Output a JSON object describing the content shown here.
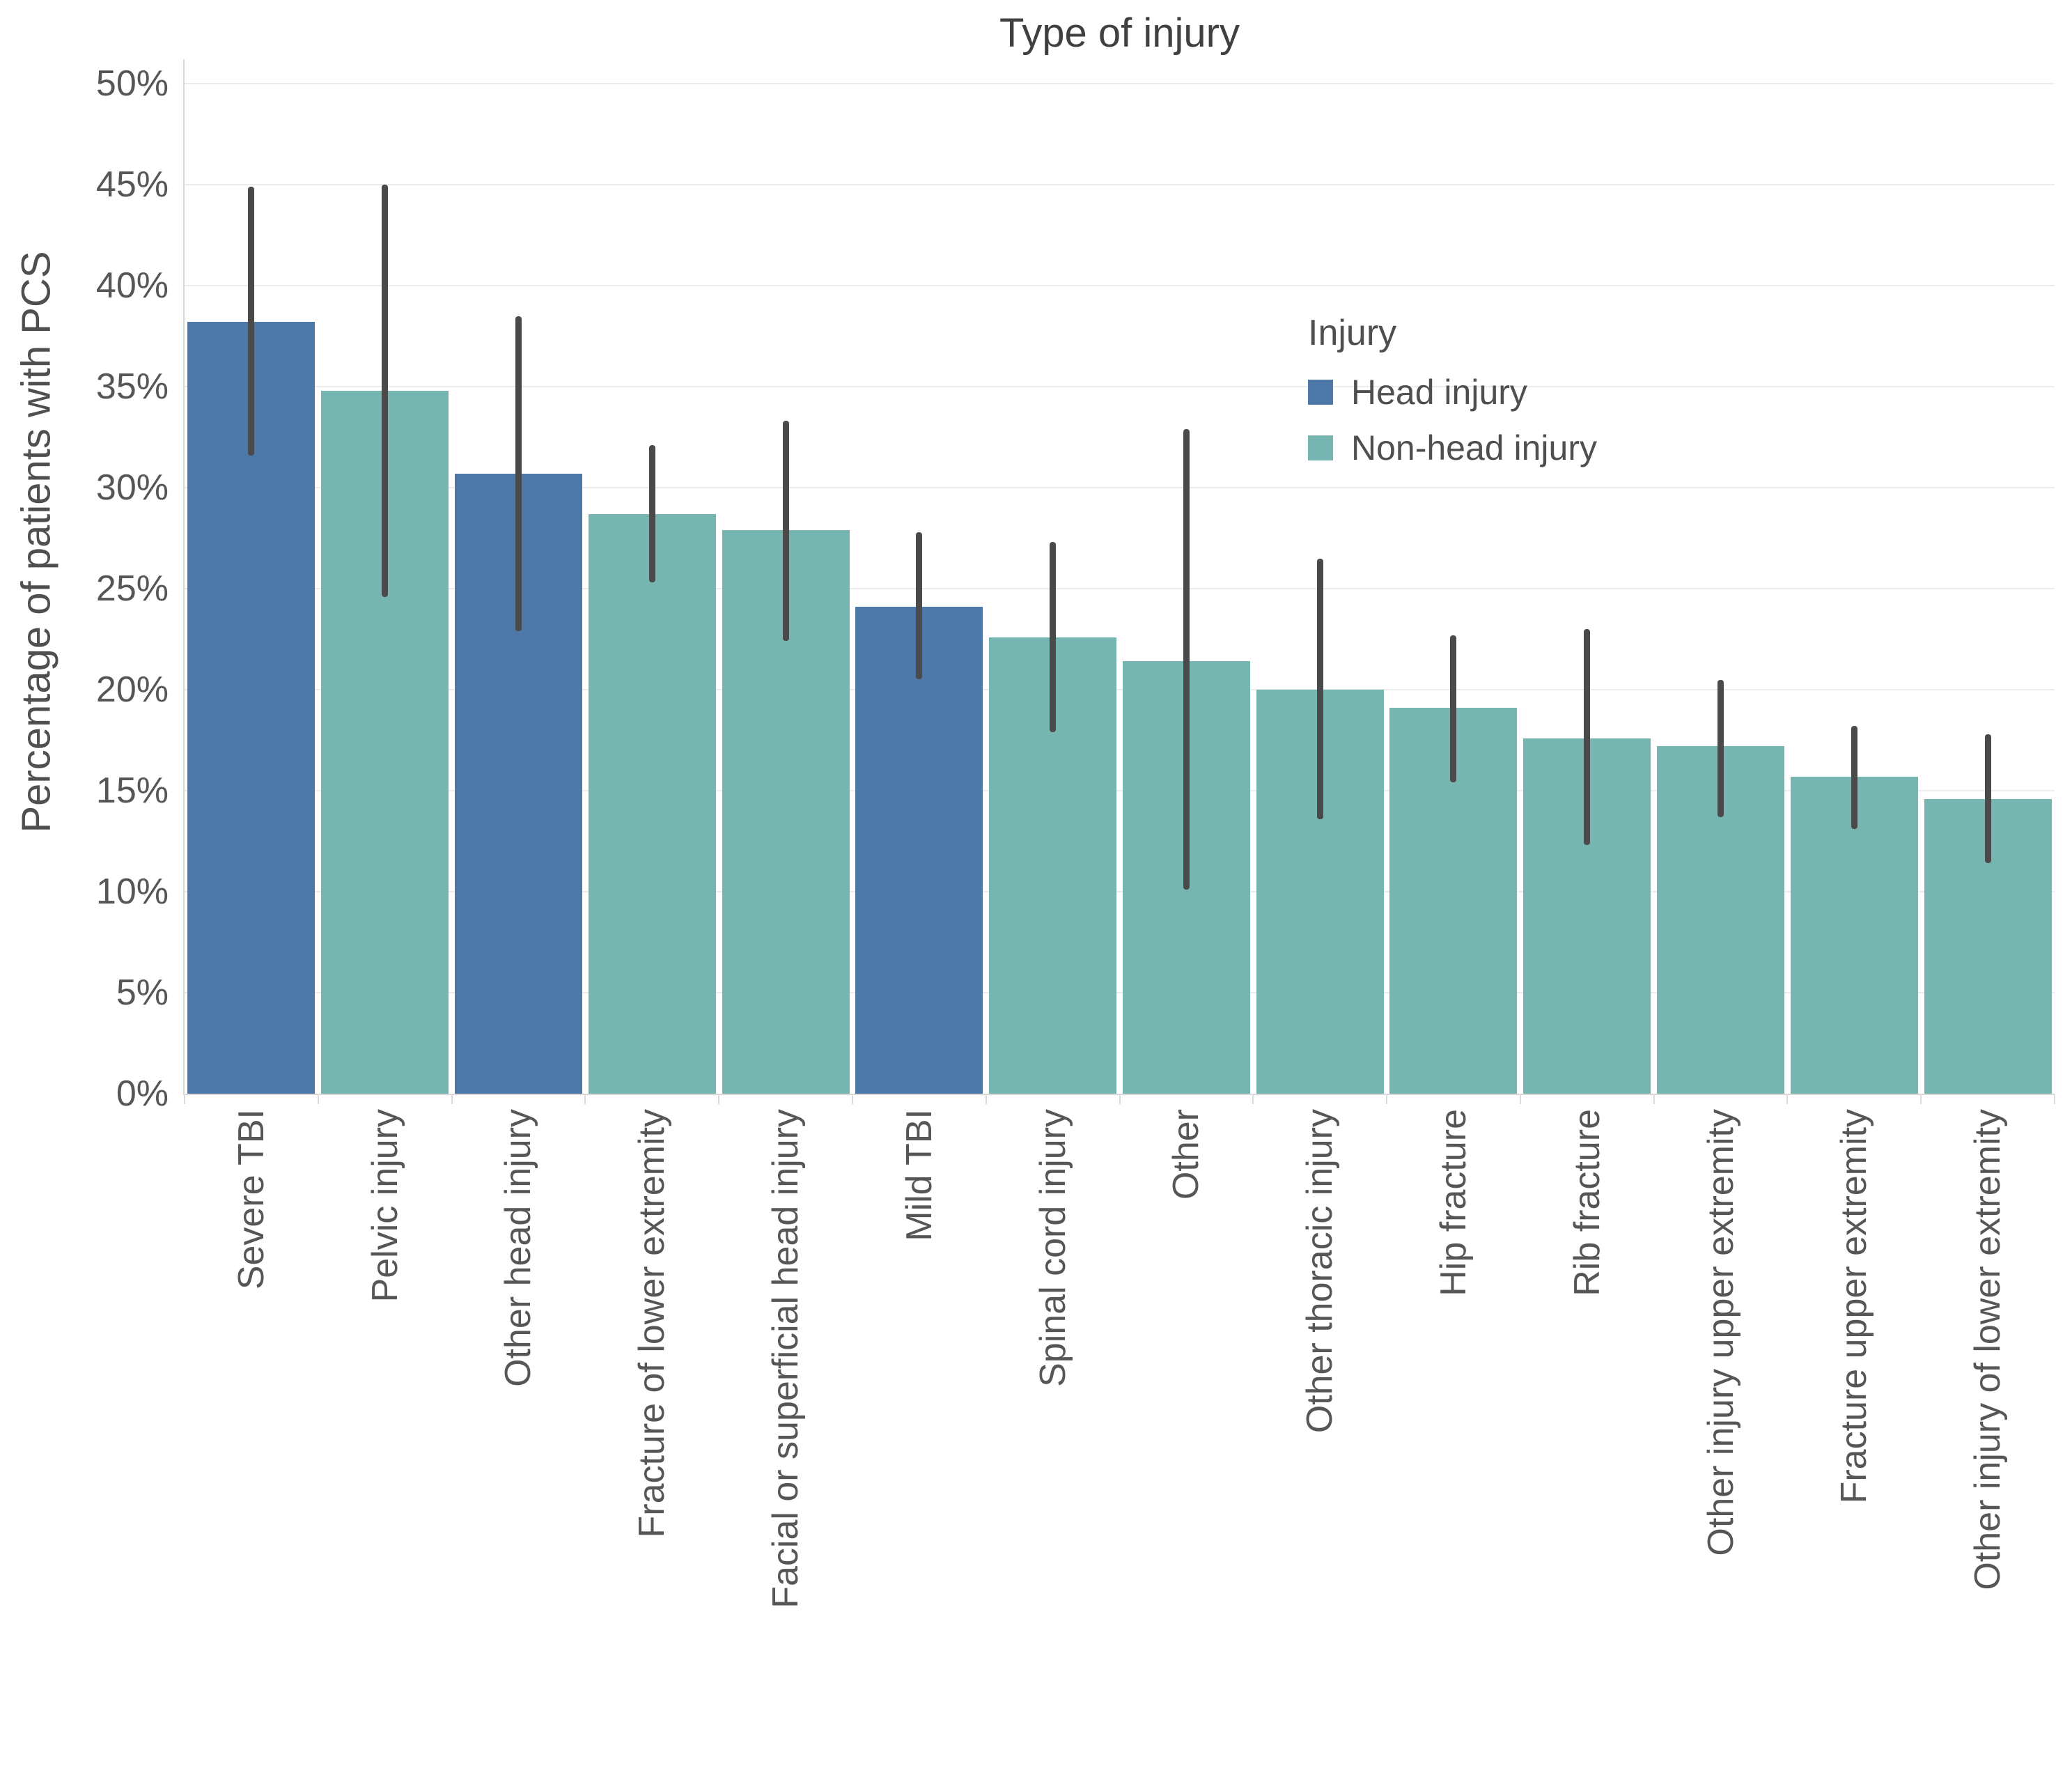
{
  "title": "Type of injury",
  "y_axis": {
    "label": "Percentage of patients with PCS",
    "ticks": [
      {
        "value": 0,
        "label": "0%"
      },
      {
        "value": 5,
        "label": "5%"
      },
      {
        "value": 10,
        "label": "10%"
      },
      {
        "value": 15,
        "label": "15%"
      },
      {
        "value": 20,
        "label": "20%"
      },
      {
        "value": 25,
        "label": "25%"
      },
      {
        "value": 30,
        "label": "30%"
      },
      {
        "value": 35,
        "label": "35%"
      },
      {
        "value": 40,
        "label": "40%"
      },
      {
        "value": 45,
        "label": "45%"
      },
      {
        "value": 50,
        "label": "50%"
      }
    ]
  },
  "legend": {
    "title": "Injury",
    "items": [
      {
        "label": "Head injury",
        "color": "#4e78a8"
      },
      {
        "label": "Non-head injury",
        "color": "#77b5b0"
      }
    ]
  },
  "colors": {
    "head_injury": "#4e78a8",
    "non_head_injury": "#77b5b0",
    "error_bar": "#4a4a4a",
    "gridline": "#ececec",
    "axis_line": "#d8d8d8",
    "tick_text": "#565656",
    "title_text": "#404040"
  },
  "chart_data": {
    "type": "bar",
    "title": "Type of injury",
    "xlabel": "",
    "ylabel": "Percentage of patients with PCS",
    "ylim": [
      0,
      51
    ],
    "ytick_step": 5,
    "grid": "horizontal",
    "legend_title": "Injury",
    "legend_position": "upper-right-inside",
    "error_bars": true,
    "series": [
      {
        "name": "Head injury",
        "color": "#4e78a8"
      },
      {
        "name": "Non-head injury",
        "color": "#77b5b0"
      }
    ],
    "categories": [
      {
        "label": "Severe TBI",
        "series": "Head injury",
        "value": 38.2,
        "ci_low": 31.6,
        "ci_high": 44.9
      },
      {
        "label": "Pelvic injury",
        "series": "Non-head injury",
        "value": 34.8,
        "ci_low": 24.6,
        "ci_high": 45.0
      },
      {
        "label": "Other head injury",
        "series": "Head injury",
        "value": 30.7,
        "ci_low": 22.9,
        "ci_high": 38.5
      },
      {
        "label": "Fracture of lower extremity",
        "series": "Non-head injury",
        "value": 28.7,
        "ci_low": 25.3,
        "ci_high": 32.1
      },
      {
        "label": "Facial or superficial head injury",
        "series": "Non-head injury",
        "value": 27.9,
        "ci_low": 22.4,
        "ci_high": 33.3
      },
      {
        "label": "Mild TBI",
        "series": "Head injury",
        "value": 24.1,
        "ci_low": 20.5,
        "ci_high": 27.8
      },
      {
        "label": "Spinal cord injury",
        "series": "Non-head injury",
        "value": 22.6,
        "ci_low": 17.9,
        "ci_high": 27.3
      },
      {
        "label": "Other",
        "series": "Non-head injury",
        "value": 21.4,
        "ci_low": 10.1,
        "ci_high": 32.9
      },
      {
        "label": "Other thoracic injury",
        "series": "Non-head injury",
        "value": 20.0,
        "ci_low": 13.6,
        "ci_high": 26.5
      },
      {
        "label": "Hip fracture",
        "series": "Non-head injury",
        "value": 19.1,
        "ci_low": 15.4,
        "ci_high": 22.7
      },
      {
        "label": "Rib fracture",
        "series": "Non-head injury",
        "value": 17.6,
        "ci_low": 12.3,
        "ci_high": 23.0
      },
      {
        "label": "Other injury upper extremity",
        "series": "Non-head injury",
        "value": 17.2,
        "ci_low": 13.7,
        "ci_high": 20.5
      },
      {
        "label": "Fracture upper extremity",
        "series": "Non-head injury",
        "value": 15.7,
        "ci_low": 13.1,
        "ci_high": 18.2
      },
      {
        "label": "Other injury of lower extremity",
        "series": "Non-head injury",
        "value": 14.6,
        "ci_low": 11.4,
        "ci_high": 17.8
      }
    ]
  }
}
